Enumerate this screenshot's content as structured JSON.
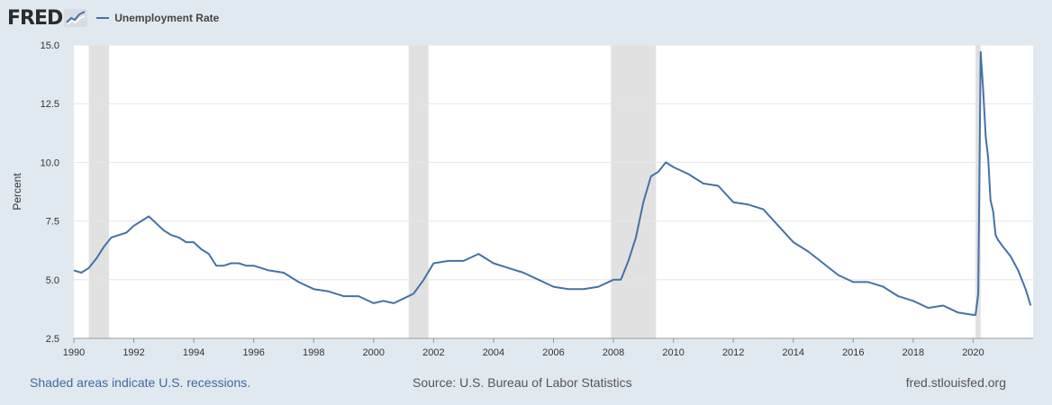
{
  "logo": {
    "text": "FRED"
  },
  "colors": {
    "line": "#4572a7",
    "recession": "#e1e1e1",
    "background": "#e1e9f0",
    "plot": "#ffffff",
    "grid": "#e6e6e6"
  },
  "footer": {
    "recessions_note": "Shaded areas indicate U.S. recessions.",
    "source": "Source: U.S. Bureau of Labor Statistics",
    "site": "fred.stlouisfed.org"
  },
  "chart_data": {
    "type": "line",
    "title": "",
    "xlabel": "",
    "ylabel": "Percent",
    "xlim": [
      1990,
      2022
    ],
    "ylim": [
      2.5,
      15.0
    ],
    "x_ticks": [
      1990,
      1992,
      1994,
      1996,
      1998,
      2000,
      2002,
      2004,
      2006,
      2008,
      2010,
      2012,
      2014,
      2016,
      2018,
      2020
    ],
    "y_ticks": [
      2.5,
      5.0,
      7.5,
      10.0,
      12.5,
      15.0
    ],
    "y_tick_labels": [
      "2.5",
      "5.0",
      "7.5",
      "10.0",
      "12.5",
      "15.0"
    ],
    "grid": true,
    "legend_position": "top-left",
    "recessions": [
      [
        1990.5,
        1991.17
      ],
      [
        2001.17,
        2001.83
      ],
      [
        2007.92,
        2009.42
      ],
      [
        2020.08,
        2020.25
      ]
    ],
    "series": [
      {
        "name": "Unemployment Rate",
        "x": [
          1990.0,
          1990.25,
          1990.5,
          1990.75,
          1991.0,
          1991.25,
          1991.5,
          1991.75,
          1992.0,
          1992.25,
          1992.5,
          1992.75,
          1993.0,
          1993.25,
          1993.5,
          1993.75,
          1994.0,
          1994.25,
          1994.5,
          1994.75,
          1995.0,
          1995.25,
          1995.5,
          1995.75,
          1996.0,
          1996.5,
          1997.0,
          1997.5,
          1998.0,
          1998.5,
          1999.0,
          1999.5,
          2000.0,
          2000.33,
          2000.67,
          2001.0,
          2001.33,
          2001.67,
          2002.0,
          2002.5,
          2003.0,
          2003.5,
          2004.0,
          2004.5,
          2005.0,
          2005.5,
          2006.0,
          2006.5,
          2007.0,
          2007.5,
          2008.0,
          2008.25,
          2008.5,
          2008.75,
          2009.0,
          2009.25,
          2009.5,
          2009.75,
          2010.0,
          2010.5,
          2011.0,
          2011.5,
          2012.0,
          2012.5,
          2013.0,
          2013.5,
          2014.0,
          2014.5,
          2015.0,
          2015.5,
          2016.0,
          2016.5,
          2017.0,
          2017.5,
          2018.0,
          2018.5,
          2019.0,
          2019.5,
          2020.0,
          2020.08,
          2020.17,
          2020.25,
          2020.33,
          2020.42,
          2020.5,
          2020.58,
          2020.67,
          2020.75,
          2020.83,
          2021.0,
          2021.25,
          2021.5,
          2021.75,
          2021.92
        ],
        "y": [
          5.4,
          5.3,
          5.5,
          5.9,
          6.4,
          6.8,
          6.9,
          7.0,
          7.3,
          7.5,
          7.7,
          7.4,
          7.1,
          6.9,
          6.8,
          6.6,
          6.6,
          6.3,
          6.1,
          5.6,
          5.6,
          5.7,
          5.7,
          5.6,
          5.6,
          5.4,
          5.3,
          4.9,
          4.6,
          4.5,
          4.3,
          4.3,
          4.0,
          4.1,
          4.0,
          4.2,
          4.4,
          5.0,
          5.7,
          5.8,
          5.8,
          6.1,
          5.7,
          5.5,
          5.3,
          5.0,
          4.7,
          4.6,
          4.6,
          4.7,
          5.0,
          5.0,
          5.8,
          6.8,
          8.3,
          9.4,
          9.6,
          10.0,
          9.8,
          9.5,
          9.1,
          9.0,
          8.3,
          8.2,
          8.0,
          7.3,
          6.6,
          6.2,
          5.7,
          5.2,
          4.9,
          4.9,
          4.7,
          4.3,
          4.1,
          3.8,
          3.9,
          3.6,
          3.5,
          3.5,
          4.4,
          14.7,
          13.2,
          11.1,
          10.2,
          8.4,
          7.9,
          6.9,
          6.7,
          6.4,
          6.0,
          5.4,
          4.6,
          3.9
        ]
      }
    ]
  }
}
